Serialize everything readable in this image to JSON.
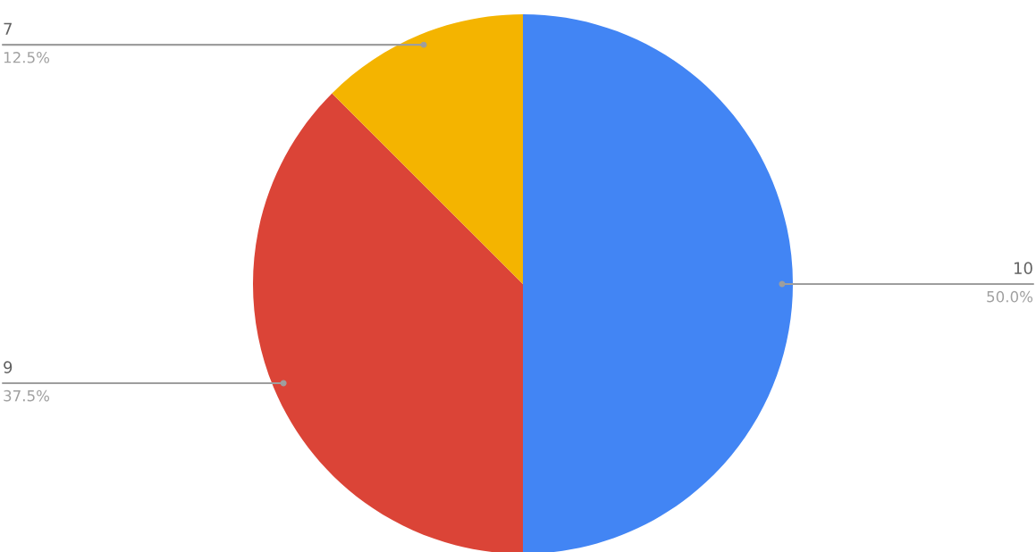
{
  "chart_data": {
    "type": "pie",
    "categories": [
      "10",
      "9",
      "7"
    ],
    "values": [
      50,
      37.5,
      12.5
    ],
    "value_labels": [
      "50.0%",
      "37.5%",
      "12.5%"
    ],
    "colors": [
      "#4285f4",
      "#db4437",
      "#f4b400"
    ]
  }
}
